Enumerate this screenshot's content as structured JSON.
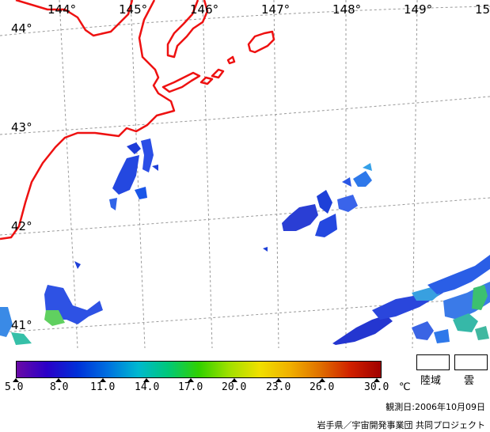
{
  "map": {
    "longitude_labels": [
      "144°",
      "145°",
      "146°",
      "147°",
      "148°",
      "149°",
      "15"
    ],
    "latitude_labels": [
      "44°",
      "43°",
      "42°",
      "41°"
    ],
    "colors": {
      "coastline": "#ee1111",
      "graticule": "#999999",
      "background": "#ffffff"
    }
  },
  "colorbar": {
    "tick_labels": [
      "5.0",
      "8.0",
      "11.0",
      "14.0",
      "17.0",
      "20.0",
      "23.0",
      "26.0",
      "30.0"
    ],
    "unit": "℃",
    "gradient_colors": [
      "#6a0aa6",
      "#2a00c8",
      "#0030d8",
      "#0070e0",
      "#00b8d0",
      "#00c878",
      "#30d000",
      "#a0e000",
      "#f0e000",
      "#f0b000",
      "#e07000",
      "#d02000",
      "#a00000"
    ]
  },
  "legend": {
    "land_label": "陸域",
    "cloud_label": "雲"
  },
  "observation_date": "観測日:2006年10月09日",
  "credit": "岩手県／宇宙開発事業団 共同プロジェクト"
}
